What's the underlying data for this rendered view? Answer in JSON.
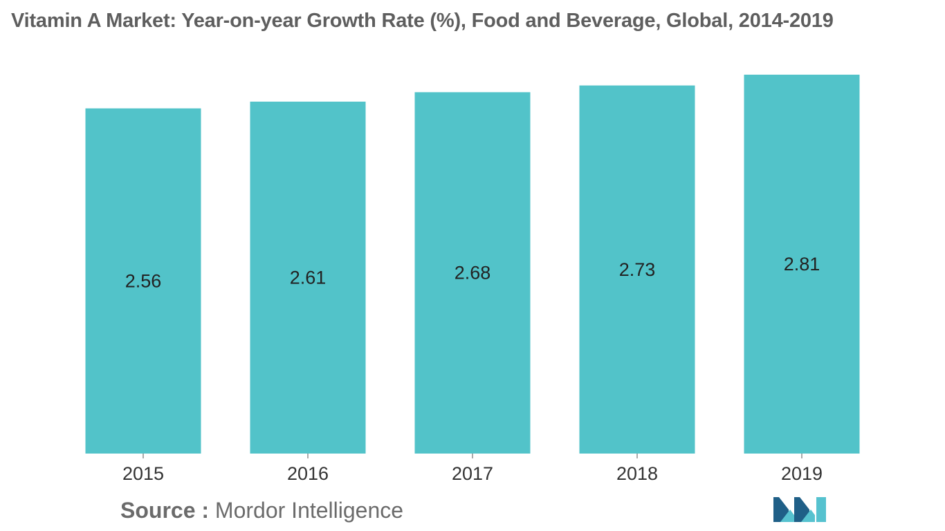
{
  "title": "Vitamin A Market: Year-on-year Growth Rate (%), Food and Beverage, Global, 2014-2019",
  "source": {
    "label": "Source :",
    "value": "Mordor Intelligence"
  },
  "colors": {
    "bar": "#52c3c9",
    "text": "#222222",
    "tick": "#333333",
    "axis": "#555555",
    "logo_dark": "#1f5f87",
    "logo_light": "#56c2cf"
  },
  "logo": {
    "name": "mordor-intelligence-logo"
  },
  "chart_data": {
    "type": "bar",
    "title": "Vitamin A Market: Year-on-year Growth Rate (%), Food and Beverage, Global, 2014-2019",
    "categories": [
      "2015",
      "2016",
      "2017",
      "2018",
      "2019"
    ],
    "values": [
      2.56,
      2.61,
      2.68,
      2.73,
      2.81
    ],
    "data_labels": [
      "2.56",
      "2.61",
      "2.68",
      "2.73",
      "2.81"
    ],
    "xlabel": "",
    "ylabel": "",
    "ylim": [
      0,
      2.81
    ],
    "grid": false,
    "legend": "none"
  }
}
